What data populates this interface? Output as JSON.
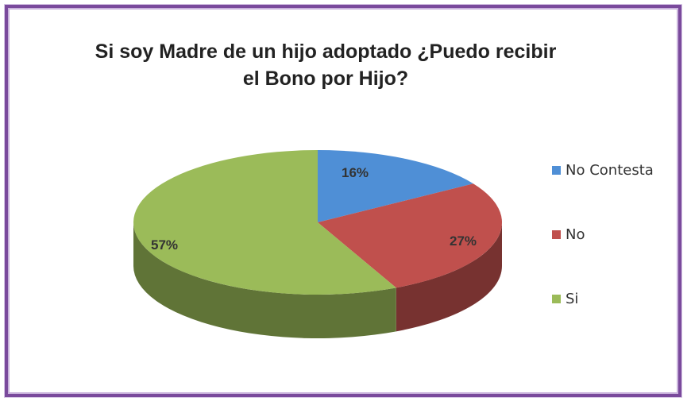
{
  "chart_data": {
    "type": "pie",
    "title": "Si soy Madre de un hijo adoptado ¿Puedo recibir el Bono por Hijo?",
    "title_lines": [
      "Si soy Madre de un hijo adoptado ¿Puedo recibir",
      "el Bono por Hijo?"
    ],
    "categories": [
      "No Contesta",
      "No",
      "Si"
    ],
    "values": [
      16,
      27,
      57
    ],
    "data_labels": [
      "16%",
      "27%",
      "57%"
    ],
    "colors": [
      "#4f8fd6",
      "#c0504d",
      "#9bbb59"
    ],
    "legend_position": "right",
    "style": "3d"
  }
}
